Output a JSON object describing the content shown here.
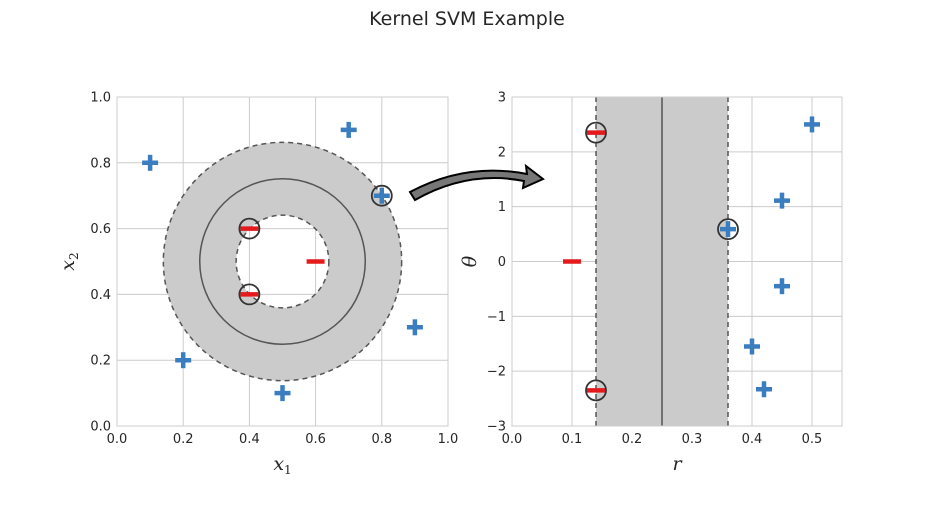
{
  "figure_title": "Kernel SVM Example",
  "chart_data": [
    {
      "type": "scatter",
      "xlabel": "x",
      "xlabel_sub": "1",
      "ylabel": "x",
      "ylabel_sub": "2",
      "xlim": [
        0.0,
        1.0
      ],
      "ylim": [
        0.0,
        1.0
      ],
      "xticks": [
        "0.0",
        "0.2",
        "0.4",
        "0.6",
        "0.8",
        "1.0"
      ],
      "yticks": [
        "0.0",
        "0.2",
        "0.4",
        "0.6",
        "0.8",
        "1.0"
      ],
      "grid": true,
      "decision_boundary": {
        "center": [
          0.5,
          0.5
        ],
        "radius": 0.25
      },
      "margin": {
        "center": [
          0.5,
          0.5
        ],
        "inner_radius": 0.14,
        "outer_radius": 0.36
      },
      "series": [
        {
          "marker": "plus",
          "color": "#3a7ebf",
          "points": [
            [
              0.1,
              0.8
            ],
            [
              0.7,
              0.9
            ],
            [
              0.8,
              0.7
            ],
            [
              0.9,
              0.3
            ],
            [
              0.2,
              0.2
            ],
            [
              0.5,
              0.1
            ]
          ]
        },
        {
          "marker": "minus",
          "color": "#e41a1c",
          "points": [
            [
              0.4,
              0.6
            ],
            [
              0.6,
              0.5
            ],
            [
              0.4,
              0.4
            ]
          ]
        }
      ],
      "support_vectors": [
        [
          0.8,
          0.7
        ],
        [
          0.4,
          0.6
        ],
        [
          0.4,
          0.4
        ]
      ]
    },
    {
      "type": "scatter",
      "xlabel": "r",
      "ylabel": "θ",
      "xlim": [
        0.0,
        0.55
      ],
      "ylim": [
        -3,
        3
      ],
      "xticks": [
        "0.0",
        "0.1",
        "0.2",
        "0.3",
        "0.4",
        "0.5"
      ],
      "yticks": [
        "−3",
        "−2",
        "−1",
        "0",
        "1",
        "2",
        "3"
      ],
      "grid": true,
      "decision_boundary": {
        "r": 0.25
      },
      "margin": {
        "r_min": 0.14,
        "r_max": 0.36
      },
      "series": [
        {
          "marker": "plus",
          "color": "#3a7ebf",
          "points": [
            [
              0.5,
              2.5
            ],
            [
              0.45,
              1.11
            ],
            [
              0.36,
              0.59
            ],
            [
              0.45,
              -0.45
            ],
            [
              0.4,
              -1.55
            ],
            [
              0.42,
              -2.33
            ]
          ]
        },
        {
          "marker": "minus",
          "color": "#e41a1c",
          "points": [
            [
              0.1,
              0.0
            ],
            [
              0.14,
              2.35
            ],
            [
              0.14,
              -2.35
            ]
          ]
        }
      ],
      "support_vectors": [
        [
          0.14,
          2.35
        ],
        [
          0.36,
          0.59
        ],
        [
          0.14,
          -2.35
        ]
      ]
    }
  ]
}
